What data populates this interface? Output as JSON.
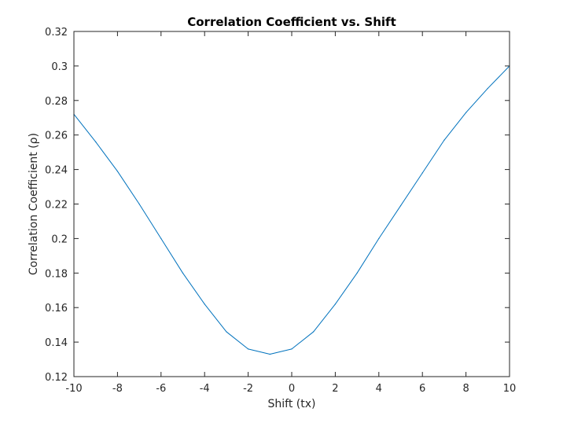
{
  "chart_data": {
    "type": "line",
    "title": "Correlation Coefficient vs. Shift",
    "xlabel": "Shift (tx)",
    "ylabel": "Correlation Coefficient (ρ)",
    "xlim": [
      -10,
      10
    ],
    "ylim": [
      0.12,
      0.32
    ],
    "xticks": [
      -10,
      -8,
      -6,
      -4,
      -2,
      0,
      2,
      4,
      6,
      8,
      10
    ],
    "xtick_labels": [
      "-10",
      "-8",
      "-6",
      "-4",
      "-2",
      "0",
      "2",
      "4",
      "6",
      "8",
      "10"
    ],
    "yticks": [
      0.12,
      0.14,
      0.16,
      0.18,
      0.2,
      0.22,
      0.24,
      0.26,
      0.28,
      0.3,
      0.32
    ],
    "ytick_labels": [
      "0.12",
      "0.14",
      "0.16",
      "0.18",
      "0.2",
      "0.22",
      "0.24",
      "0.26",
      "0.28",
      "0.3",
      "0.32"
    ],
    "grid": false,
    "box": true,
    "series": [
      {
        "color": "#0072bd",
        "x": [
          -10,
          -9,
          -8,
          -7,
          -6,
          -5,
          -4,
          -3,
          -2,
          -1,
          0,
          1,
          2,
          3,
          4,
          5,
          6,
          7,
          8,
          9,
          10
        ],
        "y": [
          0.272,
          0.256,
          0.239,
          0.22,
          0.2,
          0.18,
          0.162,
          0.146,
          0.136,
          0.133,
          0.136,
          0.146,
          0.162,
          0.18,
          0.2,
          0.219,
          0.238,
          0.257,
          0.273,
          0.287,
          0.3
        ]
      }
    ]
  }
}
